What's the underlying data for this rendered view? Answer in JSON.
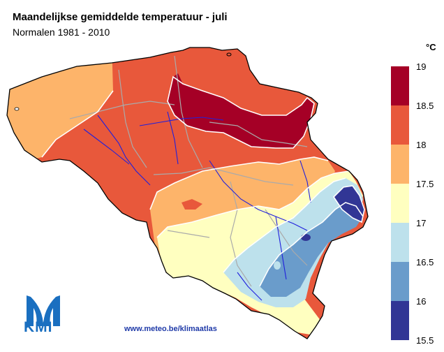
{
  "header": {
    "title": "Maandelijkse gemiddelde temperatuur - juli",
    "subtitle": "Normalen 1981 - 2010"
  },
  "legend": {
    "unit": "°C",
    "ticks": [
      "19",
      "18.5",
      "18",
      "17.5",
      "17",
      "16.5",
      "16",
      "15.5"
    ],
    "colors": [
      "#a50026",
      "#e8583b",
      "#fdb46a",
      "#ffffc0",
      "#bde1ec",
      "#6a9ccb",
      "#313695"
    ]
  },
  "footer": {
    "url": "www.meteo.be/klimaatlas",
    "logo_text": "KMI"
  },
  "map_colors": {
    "border": "#aaaaaa",
    "rivers": "#2020dd",
    "isolines": "#ffffff"
  }
}
